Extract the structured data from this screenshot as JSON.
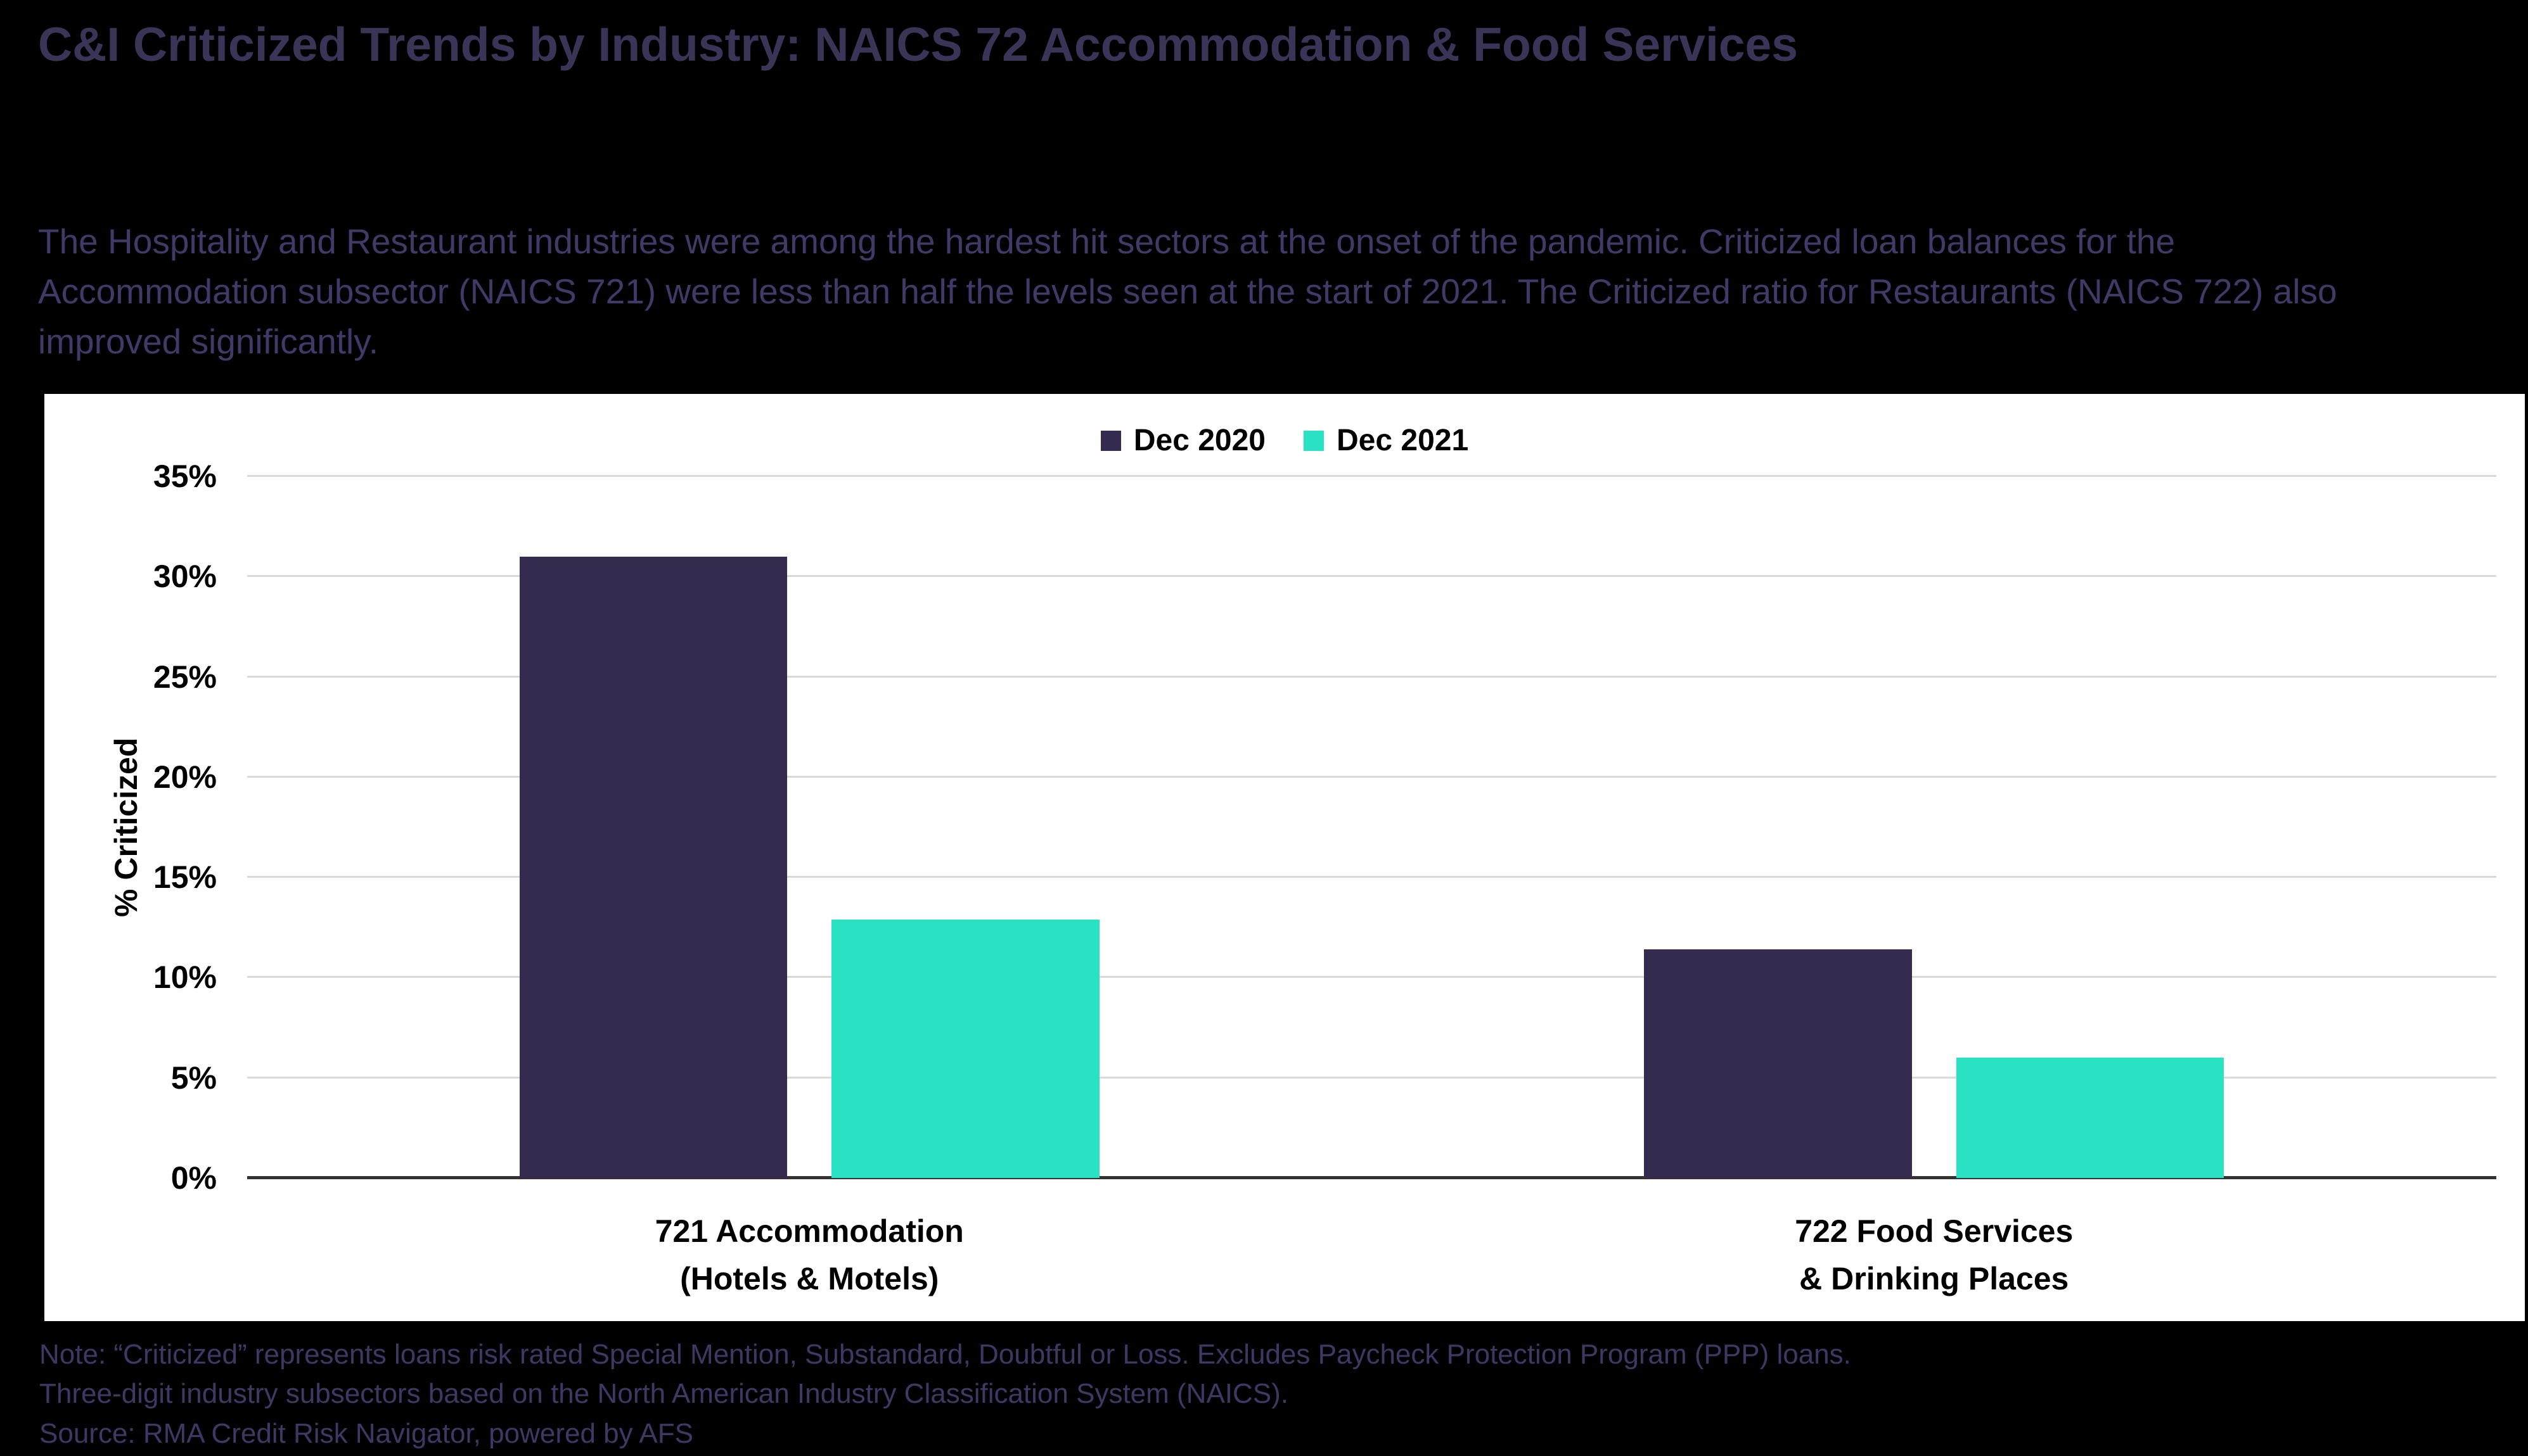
{
  "page": {
    "title": "C&I Criticized Trends by Industry: NAICS 72 Accommodation & Food Services",
    "subtitle": "The Hospitality and Restaurant industries were among the hardest hit sectors at the onset of the pandemic. Criticized loan balances for the Accommodation subsector (NAICS 721) were less than half the levels seen at the start of 2021. The Criticized ratio for Restaurants (NAICS 722) also improved significantly.",
    "footer_lines": [
      "Note: “Criticized” represents loans risk rated Special Mention, Substandard, Doubtful or Loss. Excludes Paycheck Protection Program (PPP) loans.",
      "Three-digit industry subsectors based on the North American Industry Classification System (NAICS).",
      "Source: RMA Credit Risk Navigator, powered by AFS"
    ]
  },
  "colors": {
    "page_background": "#000000",
    "title_text": "#3A3456",
    "body_text": "#413A66",
    "footer_text": "#3E3863",
    "panel_background": "#FFFFFF",
    "series_dec_2020": "#342B4E",
    "series_dec_2021": "#29E2C4",
    "gridline": "#D9D9D9",
    "axis_line": "#333333",
    "chart_text": "#000000"
  },
  "chart_data": {
    "type": "bar",
    "title": "",
    "xlabel": "",
    "ylabel": "% Criticized",
    "ylim": [
      0,
      35
    ],
    "ytick_step": 5,
    "ytick_suffix": "%",
    "grid": true,
    "legend_position": "top-center",
    "categories": [
      "721 Accommodation\n(Hotels & Motels)",
      "722 Food Services\n& Drinking Places"
    ],
    "series": [
      {
        "name": "Dec 2020",
        "color": "#342B4E",
        "values": [
          31,
          11.4
        ]
      },
      {
        "name": "Dec 2021",
        "color": "#29E2C4",
        "values": [
          12.9,
          6
        ]
      }
    ]
  }
}
